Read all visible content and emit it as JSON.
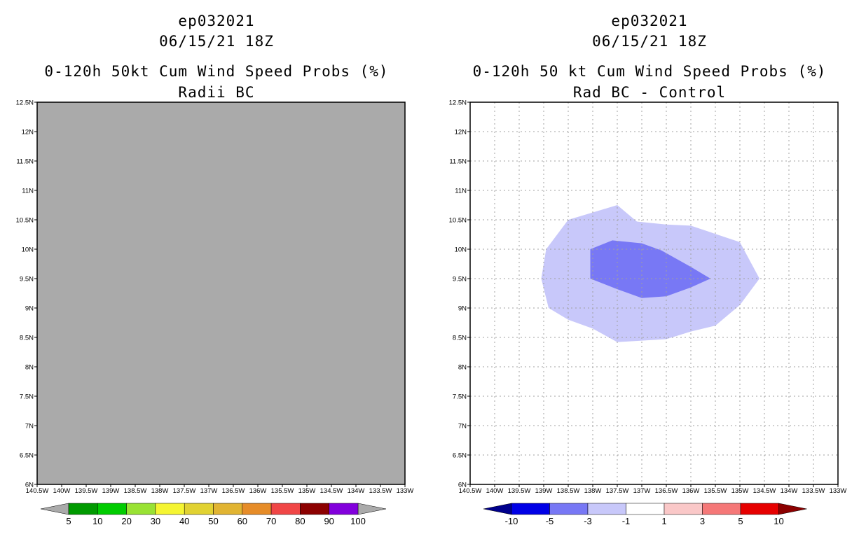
{
  "chart_data": [
    {
      "type": "contour",
      "storm_id": "ep032021",
      "date": "06/15/21 18Z",
      "title": "0-120h 50kt Cum Wind Speed Probs (%)",
      "subtitle": "Radii BC",
      "x_ticks": [
        "140.5W",
        "140W",
        "139.5W",
        "139W",
        "138.5W",
        "138W",
        "137.5W",
        "137W",
        "136.5W",
        "136W",
        "135.5W",
        "135W",
        "134.5W",
        "134W",
        "133.5W",
        "133W"
      ],
      "y_ticks": [
        "6N",
        "6.5N",
        "7N",
        "7.5N",
        "8N",
        "8.5N",
        "9N",
        "9.5N",
        "10N",
        "10.5N",
        "11N",
        "11.5N",
        "12N",
        "12.5N"
      ],
      "xlim": [
        -140.5,
        -133
      ],
      "ylim": [
        6,
        12.5
      ],
      "field": "undefined (shaded gray)",
      "field_color": "#aaaaaa",
      "colorbar": {
        "labels": [
          "5",
          "10",
          "20",
          "30",
          "40",
          "50",
          "60",
          "70",
          "80",
          "90",
          "100"
        ],
        "colors": [
          "#009a00",
          "#00cc00",
          "#99e234",
          "#f5f532",
          "#e1d232",
          "#e1b432",
          "#e68c28",
          "#f04646",
          "#8c0000",
          "#8200dc"
        ],
        "end_color": "#aaaaaa"
      }
    },
    {
      "type": "contour",
      "storm_id": "ep032021",
      "date": "06/15/21 18Z",
      "title": "0-120h 50 kt Cum Wind Speed Probs (%)",
      "subtitle": "Rad BC - Control",
      "x_ticks": [
        "140.5W",
        "140W",
        "139.5W",
        "139W",
        "138.5W",
        "138W",
        "137.5W",
        "137W",
        "136.5W",
        "136W",
        "135.5W",
        "135W",
        "134.5W",
        "134W",
        "133.5W",
        "133W"
      ],
      "y_ticks": [
        "6N",
        "6.5N",
        "7N",
        "7.5N",
        "8N",
        "8.5N",
        "9N",
        "9.5N",
        "10N",
        "10.5N",
        "11N",
        "11.5N",
        "12N",
        "12.5N"
      ],
      "xlim": [
        -140.5,
        -133
      ],
      "ylim": [
        6,
        12.5
      ],
      "contours": [
        {
          "level": "-3 to -1",
          "color": "#c8c8fa",
          "points": [
            [
              -138.5,
              10.5
            ],
            [
              -137.5,
              10.75
            ],
            [
              -137.1,
              10.47
            ],
            [
              -136.5,
              10.42
            ],
            [
              -136,
              10.4
            ],
            [
              -135,
              10.12
            ],
            [
              -134.6,
              9.5
            ],
            [
              -135,
              9.05
            ],
            [
              -135.5,
              8.7
            ],
            [
              -136,
              8.6
            ],
            [
              -136.5,
              8.47
            ],
            [
              -137.5,
              8.42
            ],
            [
              -138,
              8.65
            ],
            [
              -138.5,
              8.8
            ],
            [
              -138.9,
              9
            ],
            [
              -139.05,
              9.5
            ],
            [
              -138.95,
              10
            ]
          ]
        },
        {
          "level": "-5 to -3",
          "color": "#7878f5",
          "points": [
            [
              -138.05,
              10
            ],
            [
              -137.6,
              10.15
            ],
            [
              -137,
              10.1
            ],
            [
              -136.6,
              9.98
            ],
            [
              -136,
              9.7
            ],
            [
              -135.6,
              9.5
            ],
            [
              -136,
              9.35
            ],
            [
              -136.5,
              9.2
            ],
            [
              -137,
              9.17
            ],
            [
              -137.5,
              9.32
            ],
            [
              -138.05,
              9.5
            ]
          ]
        }
      ],
      "colorbar": {
        "labels": [
          "-10",
          "-5",
          "-3",
          "-1",
          "1",
          "3",
          "5",
          "10"
        ],
        "colors": [
          "#0000e6",
          "#7878f5",
          "#c8c8fa",
          "#ffffff",
          "#fac8c8",
          "#f57878",
          "#e60000"
        ],
        "low_end_color": "#00008c",
        "high_end_color": "#8c0000"
      }
    }
  ]
}
